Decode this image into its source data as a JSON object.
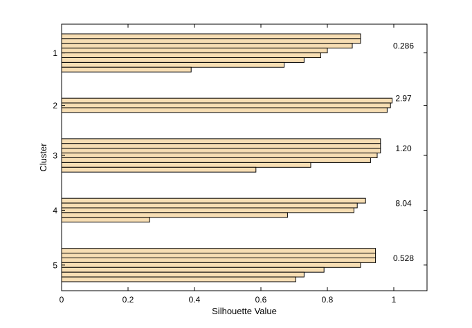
{
  "chart_data": {
    "type": "bar",
    "orientation": "horizontal",
    "title": "",
    "xlabel": "Silhouette Value",
    "ylabel": "Cluster",
    "xlim": [
      0,
      1.1
    ],
    "xticks": [
      0,
      0.2,
      0.4,
      0.6,
      0.8,
      1
    ],
    "xtick_labels": [
      "0",
      "0.2",
      "0.4",
      "0.6",
      "0.8",
      "1"
    ],
    "grid": false,
    "legend": "none",
    "bar_color": "#f7deb4",
    "bar_edge_color": "#000000",
    "clusters": [
      {
        "label": "1",
        "values": [
          0.9,
          0.9,
          0.875,
          0.8,
          0.78,
          0.73,
          0.67,
          0.39
        ],
        "annotation": "0.286"
      },
      {
        "label": "2",
        "values": [
          0.995,
          0.99,
          0.98
        ],
        "annotation": "2.97"
      },
      {
        "label": "3",
        "values": [
          0.96,
          0.96,
          0.96,
          0.95,
          0.93,
          0.75,
          0.585
        ],
        "annotation": "1.20"
      },
      {
        "label": "4",
        "values": [
          0.915,
          0.89,
          0.88,
          0.68,
          0.265
        ],
        "annotation": "8.04"
      },
      {
        "label": "5",
        "values": [
          0.945,
          0.945,
          0.945,
          0.9,
          0.79,
          0.73,
          0.705
        ],
        "annotation": "0.528"
      }
    ]
  }
}
